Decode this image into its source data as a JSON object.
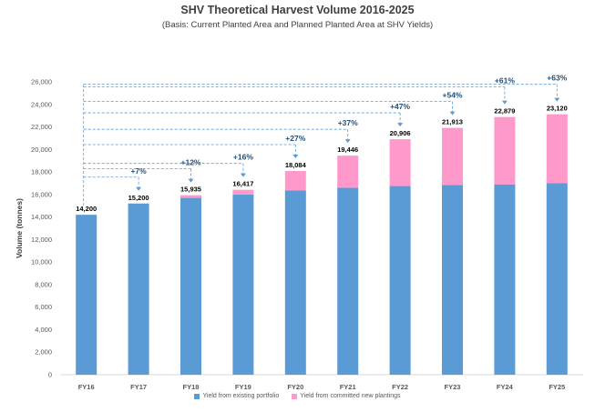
{
  "chart_data": {
    "type": "bar",
    "stacked": true,
    "title": "SHV Theoretical Harvest Volume 2016-2025",
    "subtitle": "(Basis: Current Planted Area and Planned Planted Area at SHV Yields)",
    "xlabel": "",
    "ylabel": "Volume (tonnes)",
    "ylim": [
      0,
      26000
    ],
    "yticks": [
      0,
      2000,
      4000,
      6000,
      8000,
      10000,
      12000,
      14000,
      16000,
      18000,
      20000,
      22000,
      24000,
      26000
    ],
    "ytick_labels": [
      "0",
      "2,000",
      "4,000",
      "6,000",
      "8,000",
      "10,000",
      "12,000",
      "14,000",
      "16,000",
      "18,000",
      "20,000",
      "22,000",
      "24,000",
      "26,000"
    ],
    "categories": [
      "FY16",
      "FY17",
      "FY18",
      "FY19",
      "FY20",
      "FY21",
      "FY22",
      "FY23",
      "FY24",
      "FY25"
    ],
    "series": [
      {
        "name": "Yield from existing portfolio",
        "color": "#5b9bd5",
        "values": [
          14200,
          15200,
          15700,
          16000,
          16350,
          16600,
          16750,
          16850,
          16900,
          17000
        ]
      },
      {
        "name": "Yield from committed new plantings",
        "color": "#ff99cc",
        "values": [
          0,
          0,
          235,
          417,
          1734,
          2846,
          4156,
          5063,
          5979,
          6120
        ]
      }
    ],
    "totals": [
      "14,200",
      "15,200",
      "15,935",
      "16,417",
      "18,084",
      "19,446",
      "20,906",
      "21,913",
      "22,879",
      "23,120"
    ],
    "growth_labels": [
      "",
      "+7%",
      "+12%",
      "+16%",
      "+27%",
      "+37%",
      "+47%",
      "+54%",
      "+61%",
      "+63%"
    ],
    "annotation_color": "#5b9bd5",
    "annotation_text_color": "#1f4e79",
    "grid": false,
    "legend_position": "bottom"
  }
}
